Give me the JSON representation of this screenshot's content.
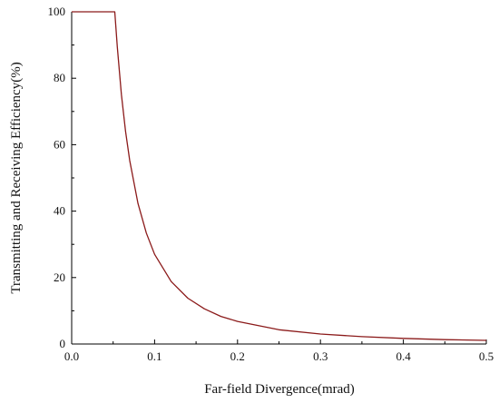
{
  "chart_data": {
    "type": "line",
    "title": "",
    "xlabel": "Far-field Divergence(mrad)",
    "ylabel": "Transmitting and Receiving Efficiency(%)",
    "xlim": [
      0,
      0.5
    ],
    "ylim": [
      0,
      100
    ],
    "xticks": [
      "0.0",
      "0.1",
      "0.2",
      "0.3",
      "0.4",
      "0.5"
    ],
    "yticks": [
      "0",
      "20",
      "40",
      "60",
      "80",
      "100"
    ],
    "grid": false,
    "legend": "none",
    "line_color": "#8b1a1a",
    "series": [
      {
        "x": [
          0,
          0.01,
          0.02,
          0.03,
          0.04,
          0.05,
          0.052,
          0.055,
          0.06,
          0.065,
          0.07,
          0.08,
          0.09,
          0.1,
          0.12,
          0.14,
          0.16,
          0.18,
          0.2,
          0.25,
          0.3,
          0.35,
          0.4,
          0.45,
          0.5
        ],
        "values": [
          100,
          100,
          100,
          100,
          100,
          100,
          100,
          89.4,
          75.1,
          64.0,
          55.2,
          42.3,
          33.4,
          27.0,
          18.8,
          13.8,
          10.6,
          8.3,
          6.8,
          4.3,
          3.0,
          2.2,
          1.7,
          1.3,
          1.1
        ]
      }
    ]
  }
}
